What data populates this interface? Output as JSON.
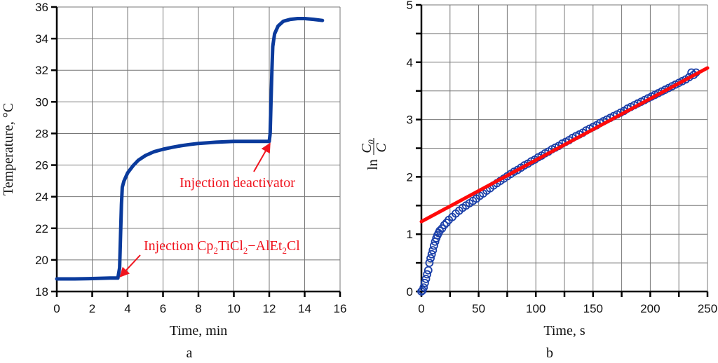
{
  "colors": {
    "curve": "#0a3a9c",
    "scatter": "#1a3fa8",
    "fit": "#ff0a0a",
    "annotation": "#f0141e"
  },
  "chart_data": [
    {
      "type": "line",
      "panel_label": "a",
      "xlabel": "Time, min",
      "ylabel": "Temperature, °C",
      "xlim": [
        0,
        16
      ],
      "ylim": [
        18,
        36
      ],
      "xticks": [
        "0",
        "2",
        "4",
        "6",
        "8",
        "10",
        "12",
        "14",
        "16"
      ],
      "yticks": [
        "18",
        "20",
        "22",
        "24",
        "26",
        "28",
        "30",
        "32",
        "34",
        "36"
      ],
      "grid": true,
      "series": [
        {
          "name": "Temperature",
          "x": [
            0,
            1,
            2,
            3,
            3.45,
            3.55,
            3.6,
            3.65,
            3.7,
            3.8,
            4.0,
            4.3,
            4.6,
            5.0,
            5.5,
            6.0,
            6.5,
            7.0,
            7.5,
            8.0,
            9.0,
            10.0,
            11.0,
            12.0,
            12.05,
            12.1,
            12.15,
            12.2,
            12.3,
            12.5,
            12.8,
            13.2,
            13.6,
            14.0,
            14.5,
            15.0
          ],
          "y": [
            18.8,
            18.8,
            18.82,
            18.85,
            18.85,
            19.5,
            21.5,
            23.5,
            24.6,
            25.0,
            25.5,
            25.95,
            26.3,
            26.6,
            26.85,
            27.0,
            27.12,
            27.22,
            27.3,
            27.37,
            27.45,
            27.5,
            27.5,
            27.5,
            28.0,
            30.0,
            32.0,
            33.5,
            34.3,
            34.8,
            35.1,
            35.22,
            35.27,
            35.27,
            35.22,
            35.15
          ]
        }
      ],
      "annotations": [
        {
          "text": "Injection ",
          "formula": [
            "Cp",
            "2",
            "TiCl",
            "2",
            "−AlEt",
            "2",
            "Cl"
          ],
          "points_to": [
            3.5,
            18.85
          ]
        },
        {
          "text": "Injection deactivator",
          "points_to": [
            12.0,
            27.5
          ]
        }
      ]
    },
    {
      "type": "scatter",
      "panel_label": "b",
      "xlabel": "Time, s",
      "ylabel": {
        "prefix": "ln",
        "numerator": "C",
        "numerator_sub": "0",
        "denominator": "C"
      },
      "xlim": [
        0,
        250
      ],
      "ylim": [
        0,
        5
      ],
      "xticks": [
        "0",
        "50",
        "100",
        "150",
        "200",
        "250"
      ],
      "yticks": [
        "0",
        "1",
        "2",
        "3",
        "4",
        "5"
      ],
      "grid": true,
      "series": [
        {
          "name": "ln(C0/C)",
          "x": [
            0,
            1,
            2,
            3,
            4,
            5,
            6,
            7,
            8,
            9,
            10,
            11,
            12,
            13,
            14,
            15,
            16,
            18,
            20,
            22,
            24,
            27,
            30,
            33,
            36,
            39,
            42,
            45,
            48,
            51,
            54,
            57,
            60,
            63,
            66,
            69,
            72,
            75,
            78,
            81,
            84,
            87,
            90,
            93,
            96,
            99,
            102,
            105,
            108,
            111,
            114,
            117,
            120,
            123,
            126,
            129,
            132,
            135,
            138,
            141,
            144,
            147,
            150,
            153,
            156,
            159,
            162,
            165,
            168,
            171,
            174,
            177,
            180,
            183,
            186,
            189,
            192,
            195,
            198,
            201,
            204,
            207,
            210,
            213,
            216,
            219,
            222,
            225,
            228,
            231,
            234,
            236,
            238,
            240
          ],
          "y": [
            0,
            0.02,
            0.07,
            0.15,
            0.22,
            0.3,
            0.37,
            0.5,
            0.58,
            0.65,
            0.72,
            0.8,
            0.87,
            0.93,
            0.98,
            1.02,
            1.06,
            1.1,
            1.16,
            1.2,
            1.25,
            1.3,
            1.36,
            1.41,
            1.46,
            1.5,
            1.54,
            1.58,
            1.62,
            1.67,
            1.71,
            1.76,
            1.8,
            1.85,
            1.89,
            1.93,
            1.97,
            2.01,
            2.05,
            2.09,
            2.12,
            2.16,
            2.2,
            2.23,
            2.27,
            2.3,
            2.34,
            2.37,
            2.41,
            2.44,
            2.48,
            2.51,
            2.54,
            2.58,
            2.61,
            2.64,
            2.68,
            2.71,
            2.74,
            2.77,
            2.81,
            2.84,
            2.87,
            2.9,
            2.94,
            2.97,
            3.0,
            3.03,
            3.06,
            3.09,
            3.12,
            3.15,
            3.19,
            3.22,
            3.25,
            3.28,
            3.31,
            3.34,
            3.37,
            3.4,
            3.43,
            3.46,
            3.49,
            3.52,
            3.55,
            3.58,
            3.61,
            3.64,
            3.67,
            3.7,
            3.74,
            3.82,
            3.78,
            3.82
          ]
        },
        {
          "name": "linear fit",
          "type": "line",
          "x": [
            0,
            250
          ],
          "y": [
            1.22,
            3.9
          ]
        }
      ]
    }
  ]
}
